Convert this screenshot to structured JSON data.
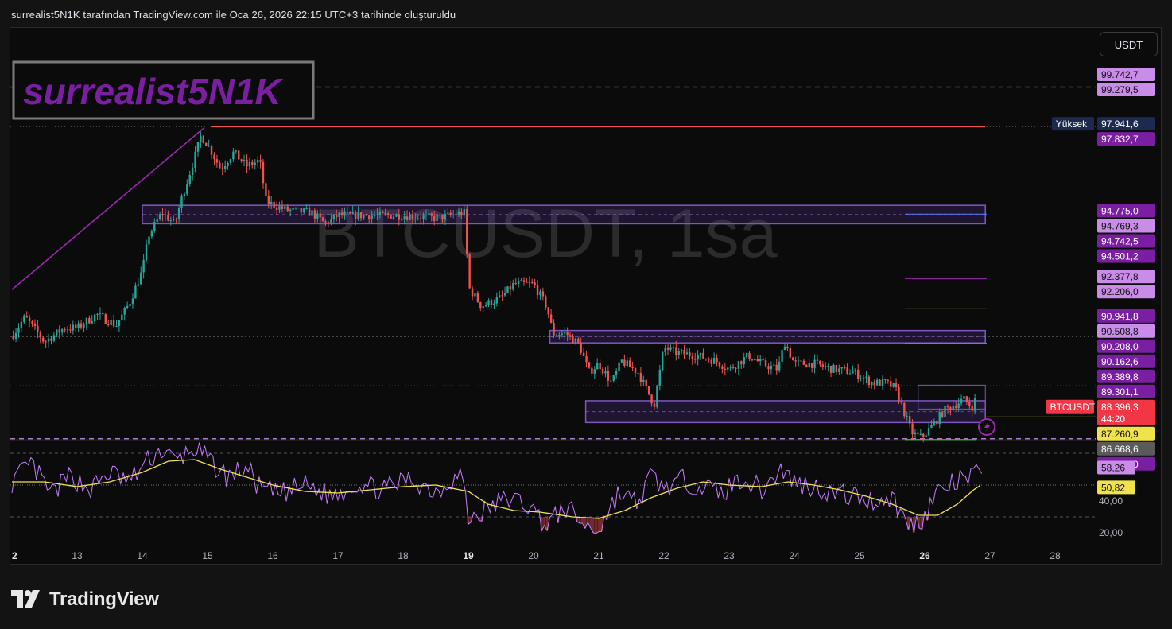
{
  "header": {
    "title": "surrealist5N1K tarafından TradingView.com ile Oca 26, 2026 22:15 UTC+3 tarihinde oluşturuldu"
  },
  "watermark": {
    "symbol": "BTCUSDT, 1sa",
    "author": "surrealist5N1K"
  },
  "toolbar": {
    "currency_label": "USDT"
  },
  "footer": {
    "brand": "TradingView"
  },
  "colors": {
    "up": "#26a69a",
    "down": "#ef5350",
    "accent": "#9c27b0",
    "author": "#7b1fa2",
    "rsi": "#c77dff",
    "rsi_ma": "#f0e34a"
  },
  "chart_data": [
    {
      "type": "candlestick",
      "symbol": "BTCUSDT",
      "interval": "1sa",
      "x_ticks": [
        "2",
        "13",
        "14",
        "15",
        "16",
        "17",
        "18",
        "19",
        "20",
        "21",
        "22",
        "23",
        "24",
        "25",
        "26",
        "27",
        "28"
      ],
      "bold_ticks": [
        "2",
        "19",
        "26"
      ],
      "y_range": [
        86200,
        100800
      ],
      "path": [
        [
          12.0,
          90200
        ],
        [
          12.2,
          90900
        ],
        [
          12.5,
          90000
        ],
        [
          12.8,
          90500
        ],
        [
          13.0,
          90500
        ],
        [
          13.3,
          91000
        ],
        [
          13.6,
          90600
        ],
        [
          13.8,
          91400
        ],
        [
          14.0,
          92600
        ],
        [
          14.1,
          93900
        ],
        [
          14.3,
          94700
        ],
        [
          14.5,
          94300
        ],
        [
          14.6,
          95200
        ],
        [
          14.8,
          96700
        ],
        [
          14.9,
          97500
        ],
        [
          15.0,
          97200
        ],
        [
          15.2,
          96300
        ],
        [
          15.4,
          96900
        ],
        [
          15.6,
          96400
        ],
        [
          15.8,
          96600
        ],
        [
          15.9,
          95100
        ],
        [
          16.2,
          94800
        ],
        [
          16.6,
          94700
        ],
        [
          16.8,
          94300
        ],
        [
          17.0,
          94600
        ],
        [
          17.5,
          94600
        ],
        [
          18.0,
          94600
        ],
        [
          18.5,
          94500
        ],
        [
          18.95,
          94700
        ],
        [
          19.0,
          92000
        ],
        [
          19.2,
          91300
        ],
        [
          19.5,
          91600
        ],
        [
          19.7,
          92100
        ],
        [
          20.0,
          92100
        ],
        [
          20.2,
          91300
        ],
        [
          20.3,
          90300
        ],
        [
          20.5,
          90300
        ],
        [
          20.7,
          89900
        ],
        [
          20.85,
          88900
        ],
        [
          21.0,
          89200
        ],
        [
          21.2,
          88500
        ],
        [
          21.35,
          89300
        ],
        [
          21.6,
          88900
        ],
        [
          21.85,
          87700
        ],
        [
          22.0,
          89800
        ],
        [
          22.2,
          89600
        ],
        [
          22.5,
          89500
        ],
        [
          22.8,
          89300
        ],
        [
          23.0,
          89000
        ],
        [
          23.3,
          89500
        ],
        [
          23.5,
          89200
        ],
        [
          23.75,
          89000
        ],
        [
          23.85,
          90000
        ],
        [
          24.0,
          89200
        ],
        [
          24.3,
          89200
        ],
        [
          24.6,
          89000
        ],
        [
          24.9,
          88900
        ],
        [
          25.2,
          88500
        ],
        [
          25.4,
          88500
        ],
        [
          25.55,
          88300
        ],
        [
          25.8,
          86700
        ],
        [
          25.95,
          86500
        ],
        [
          26.1,
          86900
        ],
        [
          26.3,
          87500
        ],
        [
          26.6,
          87900
        ],
        [
          26.75,
          87600
        ],
        [
          26.8,
          88300
        ]
      ],
      "drawings": [
        {
          "type": "zone",
          "from": 14.0,
          "to": 26.93,
          "low": 94501.2,
          "high": 94769.3
        },
        {
          "type": "zone",
          "from": 20.25,
          "to": 26.93,
          "low": 90162.6,
          "high": 90208.0
        },
        {
          "type": "zone",
          "from": 20.8,
          "to": 26.93,
          "low": 87260.9,
          "high": 87650
        },
        {
          "type": "trendline",
          "from": [
            12.0,
            91900
          ],
          "to": [
            14.95,
            97800
          ]
        },
        {
          "type": "hline",
          "value": 97832.7
        },
        {
          "type": "hline",
          "value": 99279.5
        },
        {
          "type": "hline",
          "value": 86469.0
        }
      ],
      "price_labels": [
        {
          "value": "99.742,7",
          "color": "#c98ce8"
        },
        {
          "value": "99.279,5",
          "color": "#c98ce8"
        },
        {
          "value": "97.941,6",
          "color": "#1d2a4e",
          "tag": "Yüksek"
        },
        {
          "value": "97.832,7",
          "color": "#7b1fa2"
        },
        {
          "value": "94.775,0",
          "color": "#7b1fa2"
        },
        {
          "value": "94.769,3",
          "color": "#c98ce8"
        },
        {
          "value": "94.742,5",
          "color": "#7b1fa2"
        },
        {
          "value": "94.501,2",
          "color": "#7b1fa2"
        },
        {
          "value": "92.377,8",
          "color": "#c98ce8"
        },
        {
          "value": "92.206,0",
          "color": "#c98ce8"
        },
        {
          "value": "90.941,8",
          "color": "#7b1fa2"
        },
        {
          "value": "90.508,8",
          "color": "#c98ce8"
        },
        {
          "value": "90.208,0",
          "color": "#7b1fa2"
        },
        {
          "value": "90.162,6",
          "color": "#7b1fa2"
        },
        {
          "value": "89.389,8",
          "color": "#7b1fa2"
        },
        {
          "value": "89.301,1",
          "color": "#7b1fa2"
        },
        {
          "value": "88.396,3",
          "color": "#f23645",
          "tag": "BTCUSDT",
          "countdown": "44:20"
        },
        {
          "value": "87.260,9",
          "color": "#f0e34a"
        },
        {
          "value": "86.668,6",
          "color": "#5a5a5a"
        },
        {
          "value": "86.469,0",
          "color": "#7b1fa2"
        }
      ]
    },
    {
      "type": "line",
      "indicator": "RSI",
      "y_range": [
        15,
        80
      ],
      "y_ticks": [
        "40,00",
        "20,00"
      ],
      "levels": [
        70,
        50,
        30
      ],
      "rsi_path": [
        [
          12.0,
          52
        ],
        [
          12.3,
          63
        ],
        [
          12.6,
          44
        ],
        [
          12.9,
          56
        ],
        [
          13.2,
          47
        ],
        [
          13.5,
          58
        ],
        [
          13.8,
          52
        ],
        [
          14.1,
          66
        ],
        [
          14.3,
          72
        ],
        [
          14.5,
          65
        ],
        [
          14.8,
          73
        ],
        [
          15.0,
          66
        ],
        [
          15.3,
          55
        ],
        [
          15.6,
          61
        ],
        [
          15.8,
          48
        ],
        [
          16.1,
          44
        ],
        [
          16.5,
          50
        ],
        [
          16.9,
          43
        ],
        [
          17.3,
          51
        ],
        [
          17.7,
          47
        ],
        [
          18.1,
          54
        ],
        [
          18.5,
          46
        ],
        [
          18.9,
          58
        ],
        [
          19.0,
          28
        ],
        [
          19.3,
          35
        ],
        [
          19.6,
          42
        ],
        [
          19.9,
          38
        ],
        [
          20.2,
          25
        ],
        [
          20.5,
          36
        ],
        [
          20.8,
          24
        ],
        [
          21.0,
          22
        ],
        [
          21.3,
          45
        ],
        [
          21.6,
          38
        ],
        [
          21.8,
          56
        ],
        [
          22.0,
          48
        ],
        [
          22.3,
          53
        ],
        [
          22.6,
          49
        ],
        [
          22.9,
          45
        ],
        [
          23.2,
          55
        ],
        [
          23.5,
          47
        ],
        [
          23.8,
          60
        ],
        [
          24.0,
          52
        ],
        [
          24.3,
          49
        ],
        [
          24.6,
          45
        ],
        [
          24.9,
          43
        ],
        [
          25.2,
          40
        ],
        [
          25.5,
          42
        ],
        [
          25.75,
          24
        ],
        [
          25.95,
          28
        ],
        [
          26.2,
          46
        ],
        [
          26.5,
          52
        ],
        [
          26.75,
          56
        ],
        [
          26.9,
          58
        ]
      ],
      "ma_path": [
        [
          12.0,
          52
        ],
        [
          12.5,
          52
        ],
        [
          13.0,
          49
        ],
        [
          13.5,
          52
        ],
        [
          14.0,
          58
        ],
        [
          14.4,
          65
        ],
        [
          14.8,
          66
        ],
        [
          15.2,
          60
        ],
        [
          15.6,
          55
        ],
        [
          16.0,
          50
        ],
        [
          16.5,
          46
        ],
        [
          17.0,
          45
        ],
        [
          17.5,
          47
        ],
        [
          18.0,
          49
        ],
        [
          18.5,
          50
        ],
        [
          19.0,
          46
        ],
        [
          19.3,
          38
        ],
        [
          19.7,
          34
        ],
        [
          20.1,
          33
        ],
        [
          20.6,
          30
        ],
        [
          21.0,
          29
        ],
        [
          21.4,
          34
        ],
        [
          21.8,
          42
        ],
        [
          22.2,
          48
        ],
        [
          22.6,
          52
        ],
        [
          23.0,
          50
        ],
        [
          23.5,
          49
        ],
        [
          23.9,
          52
        ],
        [
          24.3,
          50
        ],
        [
          24.7,
          47
        ],
        [
          25.1,
          43
        ],
        [
          25.5,
          38
        ],
        [
          25.9,
          31
        ],
        [
          26.2,
          31
        ],
        [
          26.5,
          38
        ],
        [
          26.75,
          47
        ],
        [
          26.9,
          51
        ]
      ],
      "value_labels": [
        {
          "value": "58,26",
          "color": "#c98ce8",
          "y": 58.26
        },
        {
          "value": "50,82",
          "color": "#f0e34a",
          "y": 50.82
        }
      ]
    }
  ]
}
